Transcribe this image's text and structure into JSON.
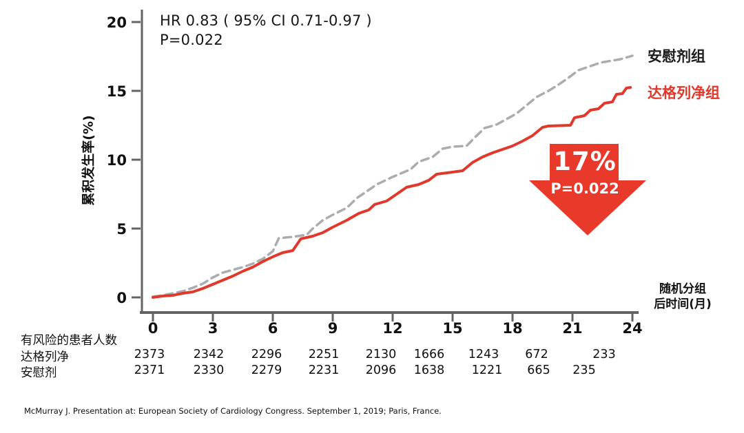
{
  "title_annotation": {
    "line1": "HR  0.83 ( 95% CI 0.71-0.97 )",
    "line2": "P=0.022"
  },
  "legend": {
    "placebo_label": "安慰剂组",
    "dapagliflozin_label": "达格列净组"
  },
  "reduction_arrow": {
    "percent": "17%",
    "p_value": "P=0.022"
  },
  "x_axis_side_label": {
    "line1": "随机分组",
    "line2": "后时间(月)"
  },
  "footer": {
    "citation": "McMurray J. Presentation at: European Society of Cardiology Congress. September 1, 2019; Paris, France."
  },
  "colors": {
    "red": "#E0392B",
    "gray_dashed": "#ACACB0",
    "axis": "#636366",
    "tick_text": "#111111"
  },
  "chart_data": {
    "type": "line",
    "title": "",
    "xlabel": "随机分组后时间(月)",
    "ylabel": "累积发生率(%)",
    "xlim": [
      0,
      24
    ],
    "ylim": [
      0,
      20
    ],
    "x_ticks": [
      0,
      3,
      6,
      9,
      12,
      15,
      18,
      21,
      24
    ],
    "y_ticks": [
      0,
      5,
      10,
      15,
      20
    ],
    "grid": false,
    "annotations": [
      "HR 0.83 (95% CI 0.71-0.97)",
      "P=0.022",
      "17% relative risk reduction, P=0.022"
    ],
    "series": [
      {
        "name": "安慰剂组",
        "style": "dashed",
        "color": "#ACACB0",
        "points": [
          [
            0,
            0.05
          ],
          [
            0.5,
            0.15
          ],
          [
            1,
            0.3
          ],
          [
            1.5,
            0.45
          ],
          [
            2,
            0.7
          ],
          [
            2.5,
            1.0
          ],
          [
            3,
            1.45
          ],
          [
            3.5,
            1.8
          ],
          [
            4,
            2.0
          ],
          [
            4.5,
            2.2
          ],
          [
            5,
            2.45
          ],
          [
            5.5,
            2.8
          ],
          [
            6,
            3.35
          ],
          [
            6.3,
            4.3
          ],
          [
            7,
            4.4
          ],
          [
            7.7,
            4.55
          ],
          [
            8,
            5.0
          ],
          [
            8.5,
            5.6
          ],
          [
            9,
            6.0
          ],
          [
            9.7,
            6.5
          ],
          [
            10.2,
            7.2
          ],
          [
            10.6,
            7.6
          ],
          [
            11.2,
            8.2
          ],
          [
            12,
            8.75
          ],
          [
            12.4,
            9.0
          ],
          [
            12.9,
            9.3
          ],
          [
            13.3,
            9.85
          ],
          [
            14,
            10.2
          ],
          [
            14.5,
            10.8
          ],
          [
            15,
            10.95
          ],
          [
            15.7,
            11.0
          ],
          [
            16.1,
            11.6
          ],
          [
            16.6,
            12.3
          ],
          [
            17.2,
            12.55
          ],
          [
            17.7,
            12.95
          ],
          [
            18.2,
            13.35
          ],
          [
            18.7,
            13.95
          ],
          [
            19.2,
            14.55
          ],
          [
            19.8,
            15.0
          ],
          [
            20.3,
            15.45
          ],
          [
            20.8,
            15.95
          ],
          [
            21.3,
            16.5
          ],
          [
            21.9,
            16.8
          ],
          [
            22.4,
            17.05
          ],
          [
            23,
            17.2
          ],
          [
            23.4,
            17.3
          ],
          [
            24,
            17.55
          ]
        ]
      },
      {
        "name": "达格列净组",
        "style": "solid",
        "color": "#E0392B",
        "points": [
          [
            0,
            0
          ],
          [
            0.5,
            0.1
          ],
          [
            1,
            0.15
          ],
          [
            1.5,
            0.3
          ],
          [
            2,
            0.4
          ],
          [
            2.5,
            0.65
          ],
          [
            3,
            0.95
          ],
          [
            3.5,
            1.25
          ],
          [
            4,
            1.55
          ],
          [
            4.5,
            1.9
          ],
          [
            5,
            2.2
          ],
          [
            5.5,
            2.6
          ],
          [
            6,
            2.95
          ],
          [
            6.5,
            3.25
          ],
          [
            7,
            3.4
          ],
          [
            7.4,
            4.25
          ],
          [
            8,
            4.45
          ],
          [
            8.5,
            4.7
          ],
          [
            9,
            5.1
          ],
          [
            9.7,
            5.6
          ],
          [
            10.3,
            6.1
          ],
          [
            10.8,
            6.35
          ],
          [
            11.1,
            6.75
          ],
          [
            11.7,
            7.0
          ],
          [
            12.2,
            7.5
          ],
          [
            12.7,
            8.0
          ],
          [
            13.3,
            8.2
          ],
          [
            13.8,
            8.5
          ],
          [
            14.2,
            8.95
          ],
          [
            15,
            9.1
          ],
          [
            15.5,
            9.2
          ],
          [
            16,
            9.8
          ],
          [
            16.5,
            10.2
          ],
          [
            17,
            10.5
          ],
          [
            17.5,
            10.75
          ],
          [
            18,
            11.0
          ],
          [
            18.5,
            11.35
          ],
          [
            19,
            11.75
          ],
          [
            19.5,
            12.35
          ],
          [
            19.8,
            12.45
          ],
          [
            20.9,
            12.5
          ],
          [
            21.1,
            13.05
          ],
          [
            21.6,
            13.2
          ],
          [
            21.9,
            13.6
          ],
          [
            22.3,
            13.7
          ],
          [
            22.6,
            14.1
          ],
          [
            23,
            14.2
          ],
          [
            23.2,
            14.75
          ],
          [
            23.5,
            14.8
          ],
          [
            23.7,
            15.2
          ],
          [
            23.9,
            15.25
          ]
        ]
      }
    ],
    "at_risk": {
      "title": "有风险的患者人数",
      "rows": [
        {
          "label": "达格列净",
          "values": [
            "2373",
            "2342",
            "2296",
            "2251",
            "2130",
            "1666",
            "1243",
            "672",
            "233"
          ]
        },
        {
          "label": "安慰剂",
          "values": [
            "2371",
            "2330",
            "2279",
            "2231",
            "2096",
            "1638",
            "1221",
            "665",
            "235"
          ]
        }
      ]
    }
  }
}
